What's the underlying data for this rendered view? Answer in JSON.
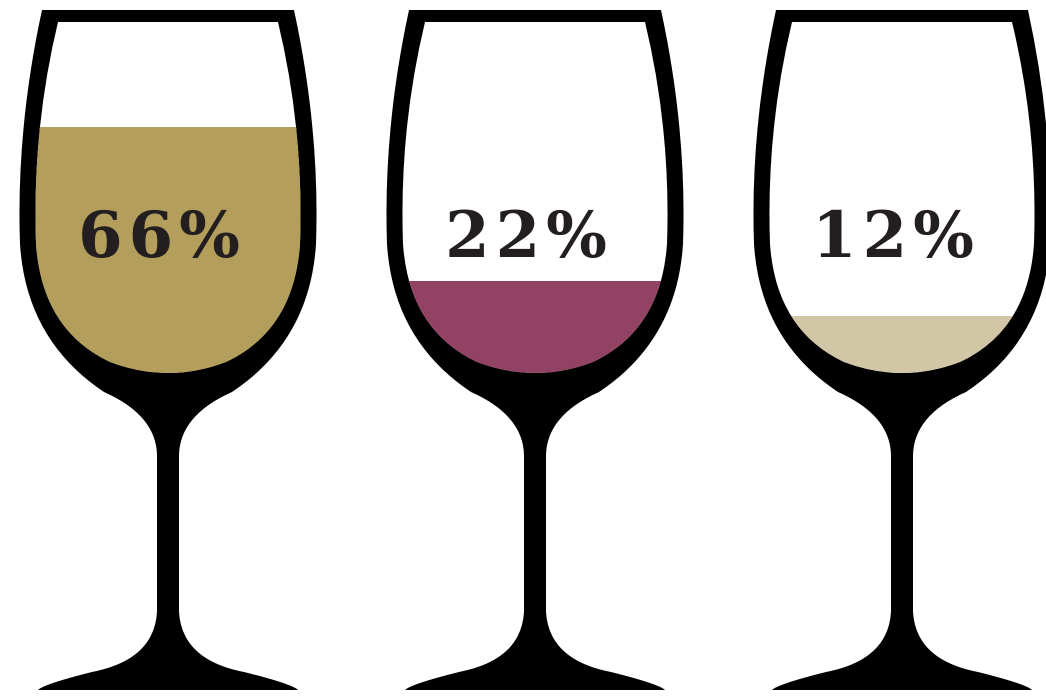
{
  "chart_data": {
    "type": "pictograph",
    "categories": [
      "",
      "",
      ""
    ],
    "values": [
      66,
      22,
      12
    ],
    "labels": [
      "66%",
      "22%",
      "12%"
    ],
    "unit": "%",
    "colors": [
      "#b39e5c",
      "#924363",
      "#d1c7a6"
    ],
    "title": "",
    "xlabel": "",
    "ylabel": "",
    "grid": false,
    "legend": "none",
    "icon": "wine-glass-icon"
  }
}
